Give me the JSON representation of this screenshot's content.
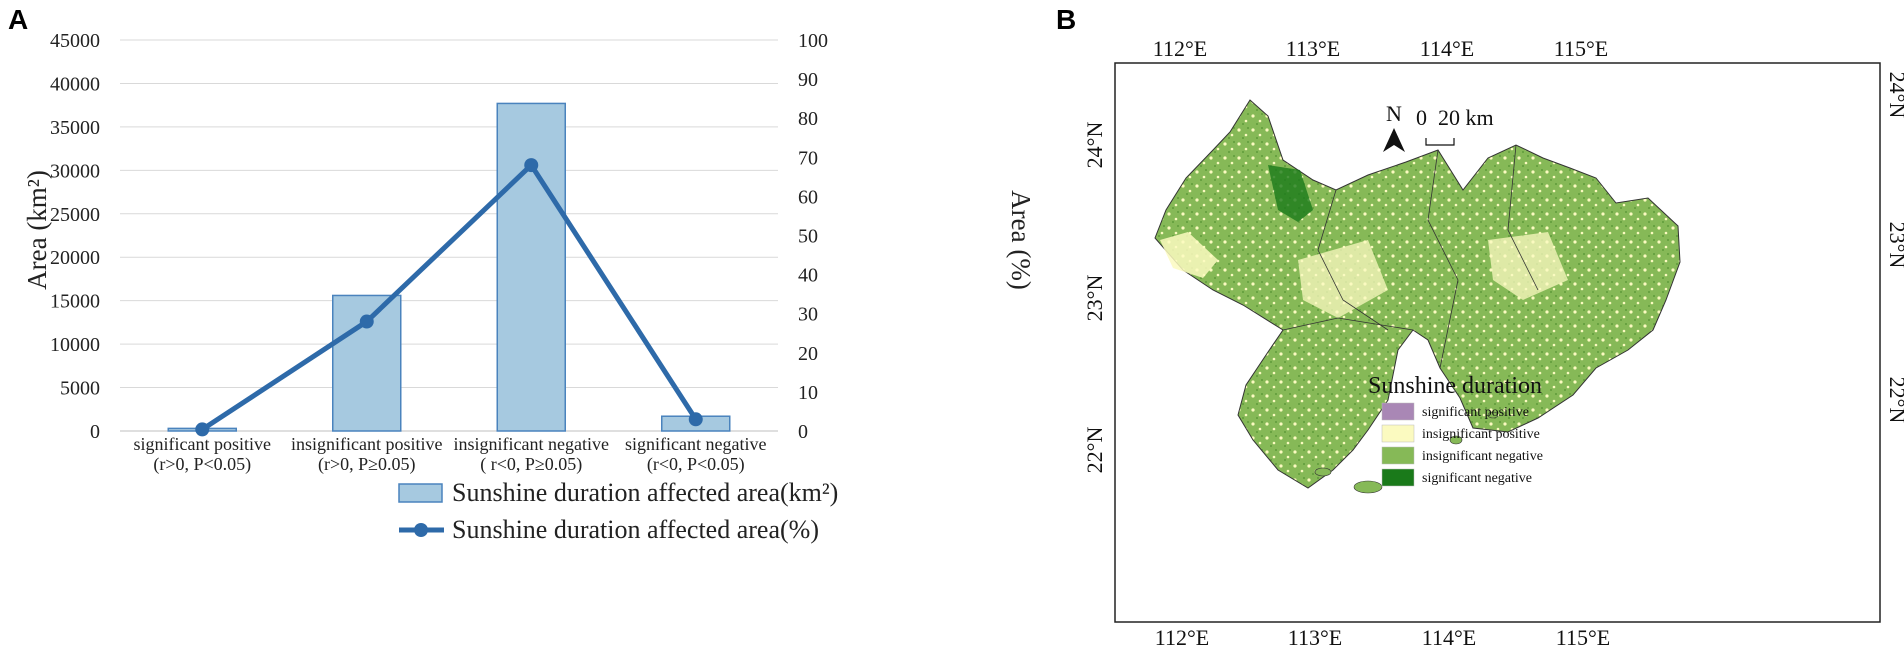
{
  "panel_a_label": "A",
  "panel_b_label": "B",
  "chart_data": [
    {
      "type": "bar",
      "categories": [
        [
          "significant positive",
          "(r>0,  P<0.05)"
        ],
        [
          "insignificant positive",
          "(r>0,  P≥0.05)"
        ],
        [
          "insignificant negative",
          "( r<0,  P≥0.05)"
        ],
        [
          "significant negative",
          "(r<0,  P<0.05)"
        ]
      ],
      "series": [
        {
          "name": "Sunshine duration affected area(km²)",
          "kind": "bar",
          "axis": "left",
          "values": [
            300,
            15600,
            37700,
            1700
          ]
        },
        {
          "name": "Sunshine duration affected area(%)",
          "kind": "line",
          "axis": "right",
          "values": [
            0.4,
            28,
            68,
            3
          ]
        }
      ],
      "ylabel": "Area (km²)",
      "ylabel2": "Area (%)",
      "ylim": [
        0,
        45000
      ],
      "y2lim": [
        0,
        100
      ],
      "yticks": [
        "0",
        "5000",
        "10000",
        "15000",
        "20000",
        "25000",
        "30000",
        "35000",
        "40000",
        "45000"
      ],
      "y2ticks": [
        "0",
        "10",
        "20",
        "30",
        "40",
        "50",
        "60",
        "70",
        "80",
        "90",
        "100"
      ],
      "grid": true,
      "legend_position": "bottom",
      "colors": {
        "bar_fill": "#a6c9e0",
        "bar_edge": "#4a83bd",
        "line": "#2e6aa9",
        "grid": "#d9d9d9"
      }
    }
  ],
  "map": {
    "lon_labels": [
      "112°E",
      "113°E",
      "114°E",
      "115°E"
    ],
    "lat_labels": [
      "22°N",
      "23°N",
      "24°N"
    ],
    "north_label": "N",
    "scale_label": "0  20 km",
    "legend": {
      "title": "Sunshine duration",
      "items": [
        {
          "label": "significant positive",
          "color": "#a987b5"
        },
        {
          "label": "insignificant positive",
          "color": "#fbfac0"
        },
        {
          "label": "insignificant negative",
          "color": "#86b957"
        },
        {
          "label": "significant negative",
          "color": "#1a7a1a"
        }
      ]
    }
  }
}
